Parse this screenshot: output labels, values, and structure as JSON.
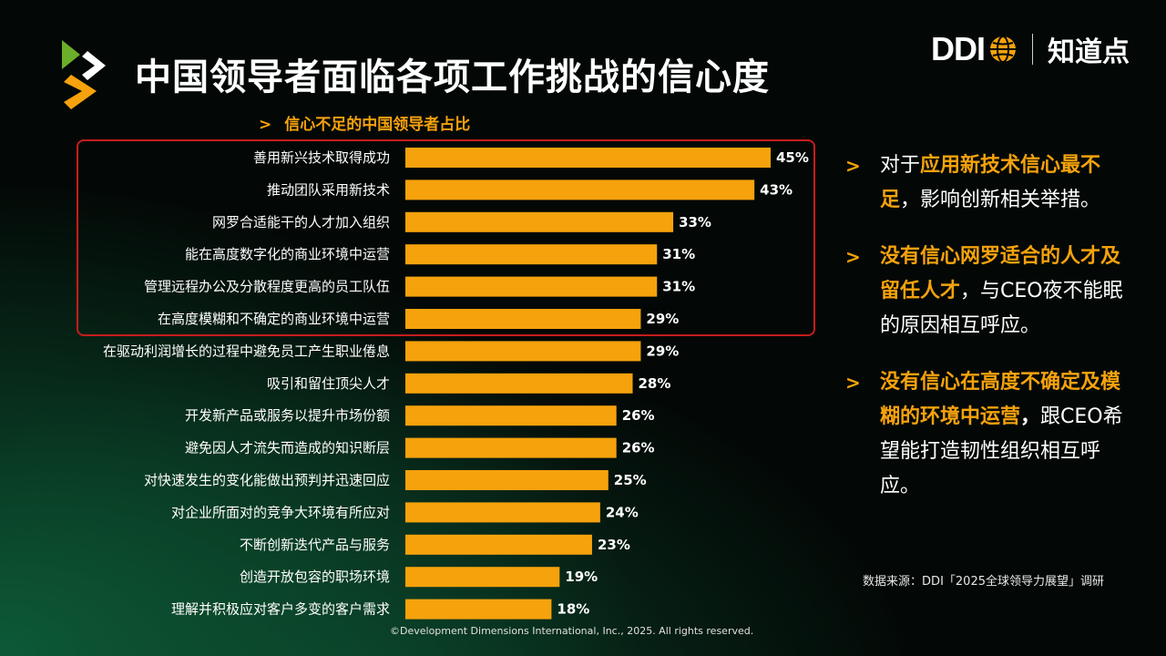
{
  "header": {
    "title": "中国领导者面临各项工作挑战的信心度",
    "brand_ddi": "DDI",
    "brand_zhidao": "知道点"
  },
  "icons": {
    "logo": "chevron-arrows-icon",
    "globe": "globe-icon",
    "bullet": "chevron-right-icon"
  },
  "colors": {
    "bar": "#F6A20C",
    "accent": "#F6A20C",
    "highlight_box": "#C51D1D",
    "logo_green": "#6BAE2A",
    "logo_orange": "#F6A20C"
  },
  "chart_data": {
    "type": "bar",
    "orientation": "horizontal",
    "title": "信心不足的中国领导者占比",
    "unit": "%",
    "categories": [
      "善用新兴技术取得成功",
      "推动团队采用新技术",
      "网罗合适能干的人才加入组织",
      "能在高度数字化的商业环境中运营",
      "管理远程办公及分散程度更高的员工队伍",
      "在高度模糊和不确定的商业环境中运营",
      "在驱动利润增长的过程中避免员工产生职业倦息",
      "吸引和留住顶尖人才",
      "开发新产品或服务以提升市场份额",
      "避免因人才流失而造成的知识断层",
      "对快速发生的变化能做出预判并迅速回应",
      "对企业所面对的竞争大环境有所应对",
      "不断创新迭代产品与服务",
      "创造开放包容的职场环境",
      "理解并积极应对客户多变的客户需求"
    ],
    "values": [
      45,
      43,
      33,
      31,
      31,
      29,
      29,
      28,
      26,
      26,
      25,
      24,
      23,
      19,
      18
    ],
    "value_labels": [
      "45%",
      "43%",
      "33%",
      "31%",
      "31%",
      "29%",
      "29%",
      "28%",
      "26%",
      "26%",
      "25%",
      "24%",
      "23%",
      "19%",
      "18%"
    ],
    "highlighted_count": 6,
    "xlim": [
      0,
      50
    ],
    "grid": false,
    "legend": "none"
  },
  "notes": [
    {
      "parts": [
        {
          "text": "对于",
          "style": "normal"
        },
        {
          "text": "应用新技术信心最不足",
          "style": "accent"
        },
        {
          "text": "，影响创新相关举措。",
          "style": "normal"
        }
      ]
    },
    {
      "parts": [
        {
          "text": "没有信心网罗适合的人才及留任人才",
          "style": "accent"
        },
        {
          "text": "，与CEO夜不能眠的原因相互呼应。",
          "style": "normal"
        }
      ]
    },
    {
      "parts": [
        {
          "text": "没有信心在高度不确定及模糊的环境中运营",
          "style": "accent"
        },
        {
          "text": "，",
          "style": "bold"
        },
        {
          "text": "跟CEO希望能打造韧性组织相互呼应。",
          "style": "normal"
        }
      ]
    }
  ],
  "footer": {
    "source": "数据来源：DDI「2025全球领导力展望」调研",
    "copyright": "©Development Dimensions International, Inc., 2025. All rights reserved."
  }
}
